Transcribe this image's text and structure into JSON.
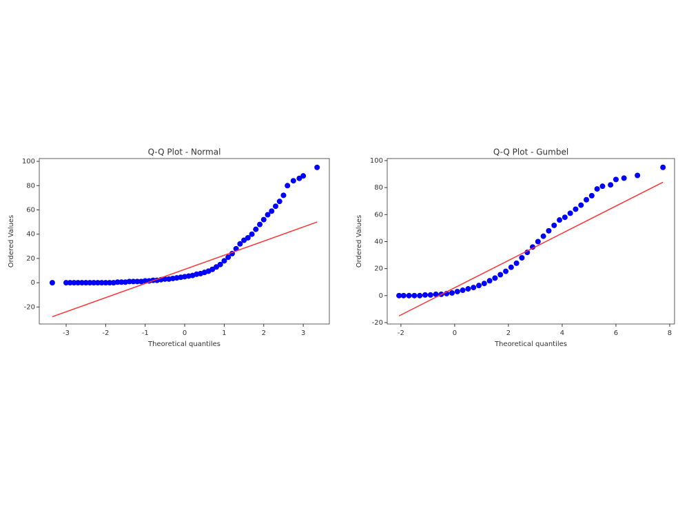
{
  "chart_data": [
    {
      "type": "scatter",
      "title": "Q-Q Plot - Normal",
      "xlabel": "Theoretical quantiles",
      "ylabel": "Ordered Values",
      "xlim": [
        -3.68,
        3.66
      ],
      "ylim": [
        -34,
        102.3
      ],
      "xticks": [
        -3,
        -2,
        -1,
        0,
        1,
        2,
        3
      ],
      "yticks": [
        -20,
        0,
        20,
        40,
        60,
        80,
        100
      ],
      "series": [
        {
          "color": "#0000ff",
          "x": [
            -3.35,
            -3.0,
            -2.9,
            -2.8,
            -2.7,
            -2.6,
            -2.5,
            -2.4,
            -2.3,
            -2.2,
            -2.1,
            -2.0,
            -1.9,
            -1.8,
            -1.7,
            -1.6,
            -1.5,
            -1.4,
            -1.3,
            -1.2,
            -1.1,
            -1.0,
            -0.9,
            -0.8,
            -0.7,
            -0.6,
            -0.5,
            -0.4,
            -0.3,
            -0.2,
            -0.1,
            0,
            0.1,
            0.2,
            0.3,
            0.4,
            0.5,
            0.6,
            0.7,
            0.8,
            0.9,
            1.0,
            1.1,
            1.2,
            1.3,
            1.4,
            1.5,
            1.6,
            1.7,
            1.8,
            1.9,
            2.0,
            2.1,
            2.2,
            2.3,
            2.4,
            2.5,
            2.6,
            2.75,
            2.9,
            3.0,
            3.35
          ],
          "values": [
            0,
            0,
            0,
            0,
            0,
            0,
            0,
            0,
            0,
            0,
            0,
            0,
            0,
            0,
            0.5,
            0.5,
            0.5,
            1,
            1,
            1,
            1,
            1.5,
            1.5,
            2,
            2,
            2.5,
            3,
            3,
            3.5,
            4,
            4.5,
            5,
            5.5,
            6,
            7,
            7.5,
            8.5,
            9.5,
            11,
            13,
            15,
            18,
            21,
            24,
            28,
            32,
            35,
            37,
            40,
            44,
            48,
            52,
            56,
            59,
            63,
            67,
            72,
            80,
            84,
            86,
            88,
            95
          ]
        },
        {
          "color": "#ff3333",
          "type": "line",
          "x": [
            -3.35,
            3.35
          ],
          "values": [
            -28,
            50
          ]
        }
      ]
    },
    {
      "type": "scatter",
      "title": "Q-Q Plot - Gumbel",
      "xlabel": "Theoretical quantiles",
      "ylabel": "Ordered Values",
      "xlim": [
        -2.51,
        8.18
      ],
      "ylim": [
        -21,
        101.5
      ],
      "xticks": [
        -2,
        0,
        2,
        4,
        6,
        8
      ],
      "yticks": [
        -20,
        0,
        20,
        40,
        60,
        80,
        100
      ],
      "series": [
        {
          "color": "#0000ff",
          "x": [
            -2.07,
            -1.9,
            -1.7,
            -1.5,
            -1.3,
            -1.1,
            -0.9,
            -0.7,
            -0.5,
            -0.3,
            -0.1,
            0.1,
            0.3,
            0.5,
            0.7,
            0.9,
            1.1,
            1.3,
            1.5,
            1.7,
            1.9,
            2.1,
            2.3,
            2.5,
            2.7,
            2.9,
            3.1,
            3.3,
            3.5,
            3.7,
            3.9,
            4.1,
            4.3,
            4.5,
            4.7,
            4.9,
            5.1,
            5.3,
            5.5,
            5.8,
            6.0,
            6.3,
            6.8,
            7.75
          ],
          "values": [
            0,
            0,
            0,
            0,
            0,
            0.5,
            0.5,
            1,
            1,
            1.5,
            2,
            3,
            4,
            5,
            6,
            7.5,
            9,
            11,
            13,
            15.5,
            18,
            21,
            24,
            28,
            32,
            36,
            40,
            44,
            48,
            52,
            56,
            58,
            61,
            64,
            67,
            71,
            74,
            79,
            81,
            82,
            86,
            87,
            89,
            95
          ]
        },
        {
          "color": "#ff3333",
          "type": "line",
          "x": [
            -2.07,
            7.75
          ],
          "values": [
            -15,
            84
          ]
        }
      ]
    }
  ]
}
